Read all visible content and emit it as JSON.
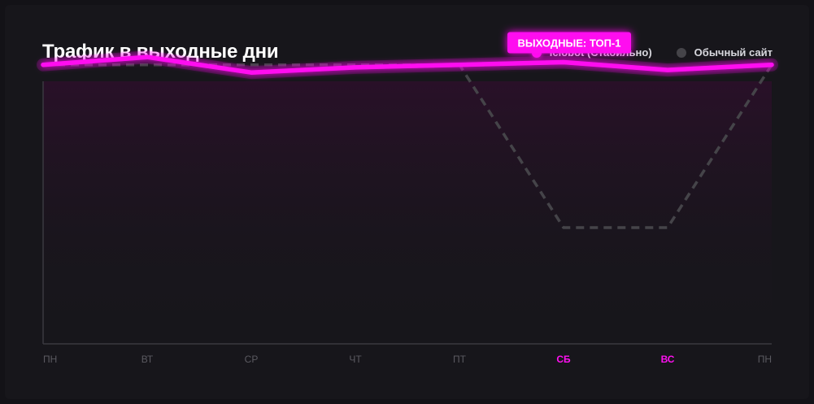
{
  "title": "Трафик в выходные дни",
  "colors": {
    "background": "#131217",
    "accent": "#ff10f0",
    "regular_site": "#454449",
    "axis": "#3a3940",
    "tick_text": "#5b5a61"
  },
  "legend": [
    {
      "label": "Iclobot (Стабильно)",
      "color": "#ff10f0"
    },
    {
      "label": "Обычный сайт",
      "color": "#454449"
    }
  ],
  "badge": {
    "text": "ВЫХОДНЫЕ: ТОП-1"
  },
  "chart_data": {
    "type": "line",
    "title": "Трафик в выходные дни",
    "xlabel": "",
    "ylabel": "",
    "categories": [
      "ПН",
      "ВТ",
      "СР",
      "ЧТ",
      "ПТ",
      "СБ",
      "ВС",
      "ПН"
    ],
    "highlighted_categories": [
      "СБ",
      "ВС"
    ],
    "ylim": [
      0,
      100
    ],
    "grid": false,
    "legend_position": "top-right",
    "series": [
      {
        "name": "Iclobot (Стабильно)",
        "style": "solid",
        "color": "#ff10f0",
        "values": [
          85,
          88,
          82,
          84,
          85,
          86,
          83,
          85
        ]
      },
      {
        "name": "Обычный сайт",
        "style": "dashed",
        "color": "#454449",
        "values": [
          85,
          85,
          85,
          85,
          85,
          22,
          22,
          85
        ]
      }
    ],
    "annotations": [
      {
        "text": "ВЫХОДНЫЕ: ТОП-1",
        "category": "СБ",
        "series": "Iclobot (Стабильно)"
      }
    ]
  }
}
